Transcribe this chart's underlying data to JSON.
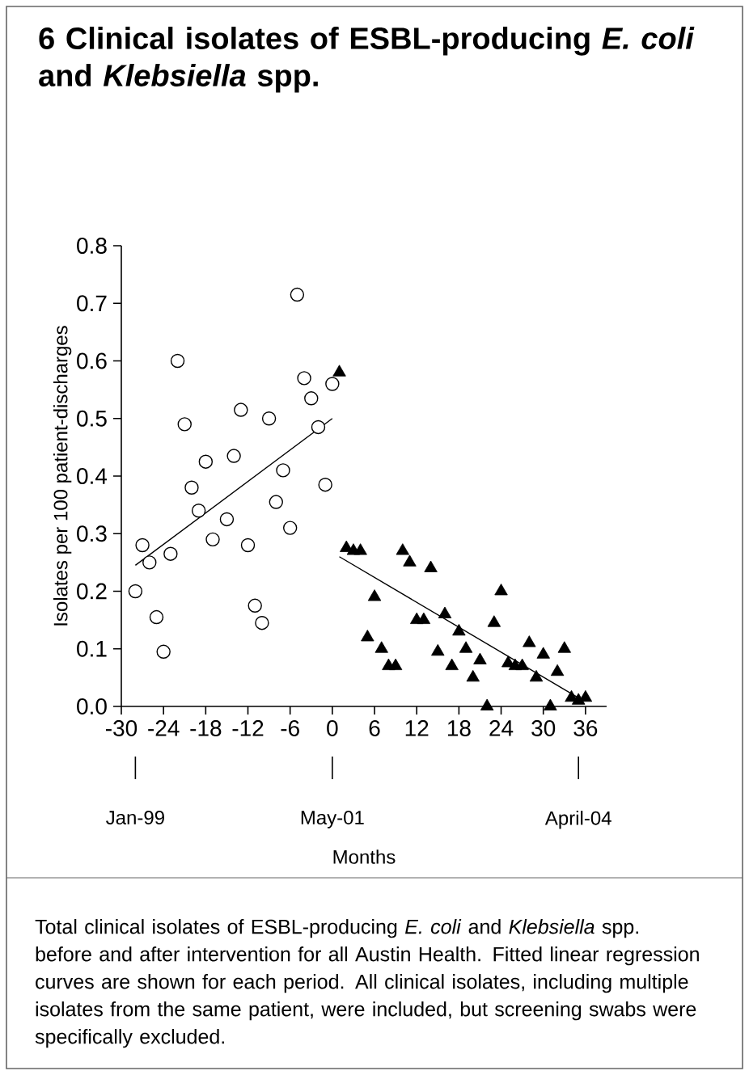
{
  "chart_data": {
    "type": "scatter",
    "title": "6 Clinical isolates of ESBL-producing *E. coli* and *Klebsiella* spp.",
    "ylabel": "Isolates per 100 patient-discharges",
    "xlabel": "Months",
    "xlim": [
      -30,
      39
    ],
    "ylim": [
      0,
      0.8
    ],
    "xticks": [
      -30,
      -24,
      -18,
      -12,
      -6,
      0,
      6,
      12,
      18,
      24,
      30,
      36
    ],
    "yticks": [
      {
        "value": 0,
        "label": "0.0"
      },
      0.1,
      0.2,
      0.3,
      0.4,
      0.5,
      0.6,
      0.7,
      0.8
    ],
    "series": [
      {
        "type": "scatter",
        "marker": "circle",
        "color": "#000000",
        "x": [
          -28,
          -27,
          -26,
          -25,
          -24,
          -23,
          -22,
          -21,
          -20,
          -19,
          -18,
          -17,
          -15,
          -14,
          -13,
          -12,
          -11,
          -10,
          -9,
          -8,
          -7,
          -6,
          -5,
          -4,
          -3,
          -2,
          -1,
          0
        ],
        "values": [
          0.2,
          0.28,
          0.25,
          0.155,
          0.095,
          0.265,
          0.6,
          0.49,
          0.38,
          0.34,
          0.425,
          0.29,
          0.325,
          0.435,
          0.515,
          0.28,
          0.175,
          0.145,
          0.5,
          0.355,
          0.41,
          0.31,
          0.715,
          0.57,
          0.535,
          0.485,
          0.385,
          0.56
        ]
      },
      {
        "type": "scatter",
        "marker": "triangle",
        "color": "#000000",
        "x": [
          1,
          2,
          3,
          4,
          5,
          6,
          7,
          8,
          9,
          10,
          11,
          12,
          13,
          14,
          15,
          16,
          17,
          18,
          19,
          20,
          21,
          22,
          23,
          24,
          25,
          26,
          27,
          28,
          29,
          30,
          31,
          32,
          33,
          34,
          35,
          36
        ],
        "values": [
          0.58,
          0.275,
          0.27,
          0.27,
          0.12,
          0.19,
          0.1,
          0.07,
          0.07,
          0.27,
          0.25,
          0.15,
          0.15,
          0.24,
          0.095,
          0.16,
          0.07,
          0.13,
          0.1,
          0.05,
          0.08,
          0.0,
          0.145,
          0.2,
          0.075,
          0.07,
          0.07,
          0.11,
          0.05,
          0.09,
          0.0,
          0.06,
          0.1,
          0.015,
          0.01,
          0.015
        ]
      },
      {
        "type": "line",
        "color": "#000000",
        "x": [
          -28,
          0
        ],
        "values": [
          0.245,
          0.5
        ]
      },
      {
        "type": "line",
        "color": "#000000",
        "x": [
          1,
          35
        ],
        "values": [
          0.26,
          0.015
        ]
      }
    ],
    "x2lim": [
      "1998-11",
      "2004-08"
    ],
    "x2ticks": [
      {
        "value": "1999-01",
        "label": "Jan-99"
      },
      {
        "value": "2001-05",
        "label": "May-01"
      },
      {
        "value": "2004-04",
        "label": "April-04"
      }
    ],
    "annotations": [
      "Total clinical isolates of ESBL-producing *E. coli* and *Klebsiella* spp. before and after intervention for all Austin Health. Fitted linear regression curves are shown for each period. All clinical isolates, including multiple isolates from the same patient, were included, but screening swabs were specifically excluded."
    ]
  }
}
